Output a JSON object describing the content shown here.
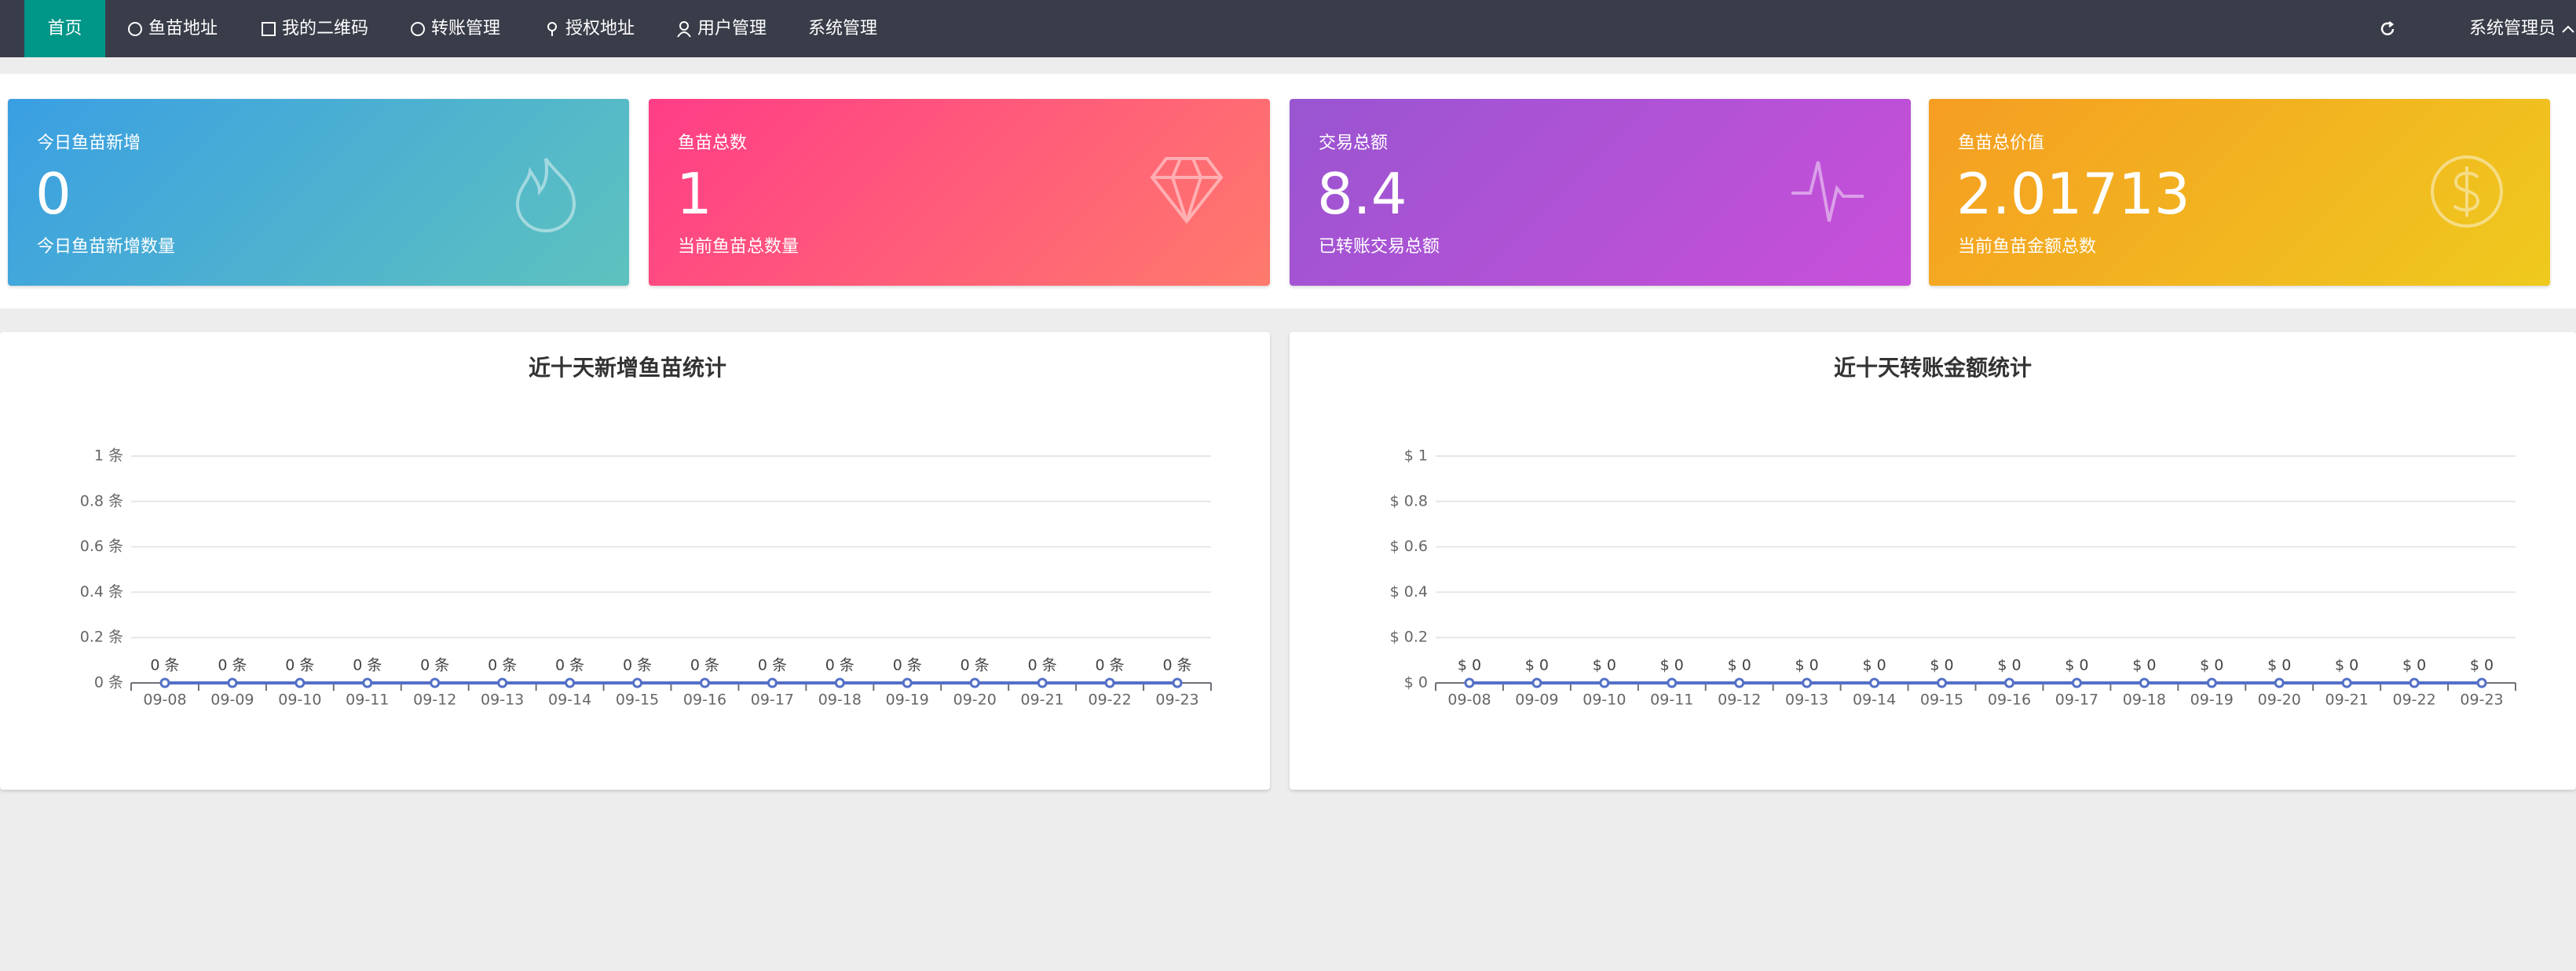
{
  "nav": {
    "items": [
      "首页",
      "鱼苗地址",
      "我的二维码",
      "转账管理",
      "授权地址",
      "用户管理",
      "系统管理"
    ],
    "user": "系统管理员"
  },
  "cards": [
    {
      "title": "今日鱼苗新增",
      "value": 0,
      "subtitle": "今日鱼苗新增数量"
    },
    {
      "title": "鱼苗总数",
      "value": 1,
      "subtitle": "当前鱼苗总数量"
    },
    {
      "title": "交易总额",
      "value": 8.4,
      "subtitle": "已转账交易总额"
    },
    {
      "title": "鱼苗总价值",
      "value": 2.01713,
      "subtitle": "当前鱼苗金额总数"
    }
  ],
  "chart_data": [
    {
      "type": "line",
      "title": "近十天新增鱼苗统计",
      "color": "#5470c6",
      "categories": [
        "09-08",
        "09-09",
        "09-10",
        "09-11",
        "09-12",
        "09-13",
        "09-14",
        "09-15",
        "09-16",
        "09-17",
        "09-18",
        "09-19",
        "09-20",
        "09-21",
        "09-22",
        "09-23"
      ],
      "values": [
        0,
        0,
        0,
        0,
        0,
        0,
        0,
        0,
        0,
        0,
        0,
        0,
        0,
        0,
        0,
        0
      ],
      "value_labels": [
        "0 条",
        "0 条",
        "0 条",
        "0 条",
        "0 条",
        "0 条",
        "0 条",
        "0 条",
        "0 条",
        "0 条",
        "0 条",
        "0 条",
        "0 条",
        "0 条",
        "0 条",
        "0 条"
      ],
      "ylim": [
        0,
        1
      ],
      "yticks": [
        {
          "value": 0,
          "label": "0 条"
        },
        {
          "value": 0.2,
          "label": "0.2 条"
        },
        {
          "value": 0.4,
          "label": "0.4 条"
        },
        {
          "value": 0.6,
          "label": "0.6 条"
        },
        {
          "value": 0.8,
          "label": "0.8 条"
        },
        {
          "value": 1,
          "label": "1 条"
        }
      ],
      "grid": true
    },
    {
      "type": "line",
      "title": "近十天转账金额统计",
      "color": "#5470c6",
      "categories": [
        "09-08",
        "09-09",
        "09-10",
        "09-11",
        "09-12",
        "09-13",
        "09-14",
        "09-15",
        "09-16",
        "09-17",
        "09-18",
        "09-19",
        "09-20",
        "09-21",
        "09-22",
        "09-23"
      ],
      "values": [
        0,
        0,
        0,
        0,
        0,
        0,
        0,
        0,
        0,
        0,
        0,
        0,
        0,
        0,
        0,
        0
      ],
      "value_labels": [
        "$ 0",
        "$ 0",
        "$ 0",
        "$ 0",
        "$ 0",
        "$ 0",
        "$ 0",
        "$ 0",
        "$ 0",
        "$ 0",
        "$ 0",
        "$ 0",
        "$ 0",
        "$ 0",
        "$ 0",
        "$ 0"
      ],
      "ylim": [
        0,
        1
      ],
      "yticks": [
        {
          "value": 0,
          "label": "$ 0"
        },
        {
          "value": 0.2,
          "label": "$ 0.2"
        },
        {
          "value": 0.4,
          "label": "$ 0.4"
        },
        {
          "value": 0.6,
          "label": "$ 0.6"
        },
        {
          "value": 0.8,
          "label": "$ 0.8"
        },
        {
          "value": 1,
          "label": "$ 1"
        }
      ],
      "grid": true
    }
  ]
}
